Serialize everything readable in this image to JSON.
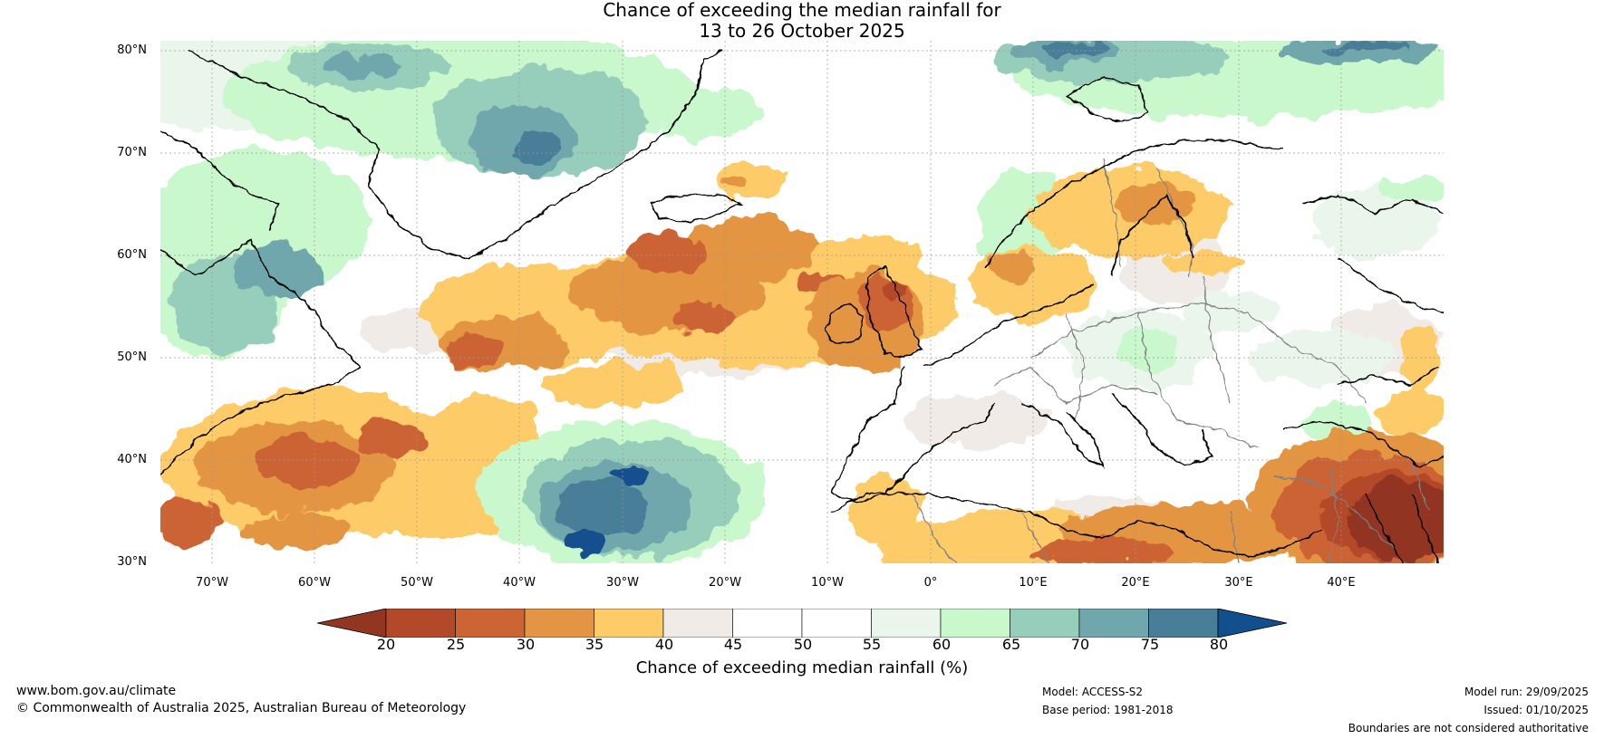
{
  "title": {
    "line1": "Chance of exceeding the median rainfall for",
    "line2": "13 to 26 October 2025"
  },
  "map": {
    "latitude_labels": [
      "80°N",
      "70°N",
      "60°N",
      "50°N",
      "40°N",
      "30°N"
    ],
    "longitude_labels": [
      "70°W",
      "60°W",
      "50°W",
      "40°W",
      "30°W",
      "20°W",
      "10°W",
      "0°",
      "10°E",
      "20°E",
      "30°E",
      "40°E"
    ],
    "lon_range": [
      -75,
      50
    ],
    "lat_range": [
      30,
      81
    ],
    "colors": {
      "coast": "#000000",
      "border": "#808080",
      "grid": "#9a9a9a"
    }
  },
  "legend": {
    "ticks": [
      "20",
      "25",
      "30",
      "35",
      "40",
      "45",
      "50",
      "55",
      "60",
      "65",
      "70",
      "75",
      "80"
    ],
    "colors": [
      "#913621",
      "#b4492a",
      "#cc6434",
      "#e39543",
      "#fecb69",
      "#f1ebe8",
      "#ffffff",
      "#ffffff",
      "#eaf6eb",
      "#c9f8cd",
      "#96cdbb",
      "#70a7ad",
      "#487e98",
      "#12508d"
    ],
    "label": "Chance of exceeding median rainfall (%)"
  },
  "footer": {
    "url": "www.bom.gov.au/climate",
    "copyright": "© Commonwealth of Australia 2025, Australian Bureau of Meteorology",
    "model": "Model: ACCESS-S2",
    "base_period": "Base period: 1981-2018",
    "model_run": "Model run: 29/09/2025",
    "issued": "Issued: 01/10/2025",
    "boundaries": "Boundaries are not considered authoritative"
  }
}
